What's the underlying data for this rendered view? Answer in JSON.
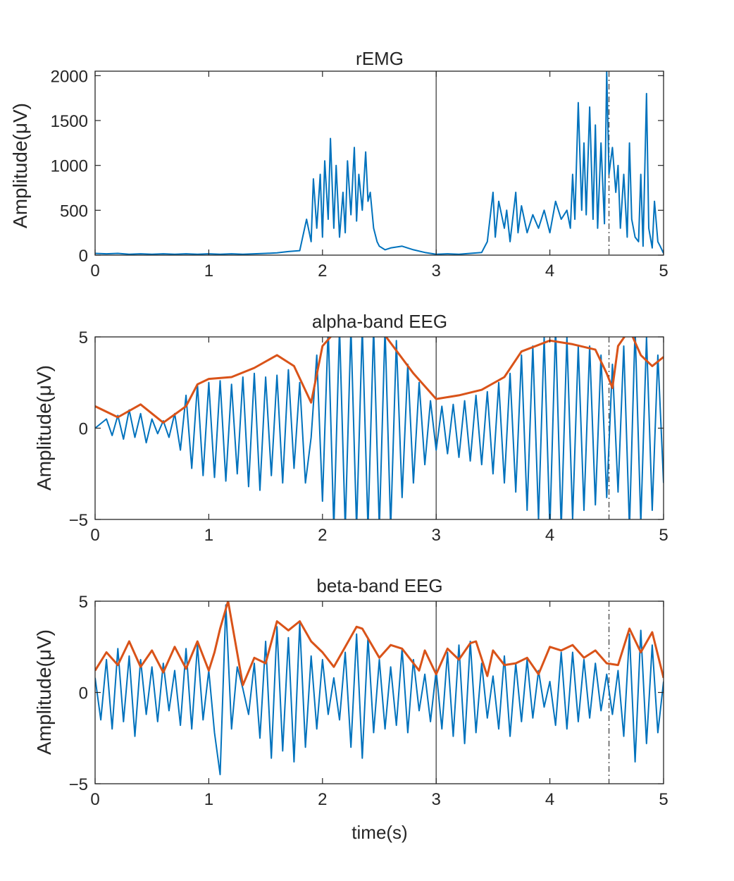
{
  "figure": {
    "xlabel": "time(s)"
  },
  "chart_data": [
    {
      "type": "line",
      "title": "rEMG",
      "ylabel": "Amplitude(μV)",
      "xlim": [
        0,
        5
      ],
      "ylim": [
        0,
        2050
      ],
      "xticks": [
        0,
        1,
        2,
        3,
        4,
        5
      ],
      "yticks": [
        0,
        500,
        1000,
        1500,
        2000
      ],
      "grid": false,
      "legend": "none",
      "colors": {
        "signal": "#0072BD",
        "marker": "#4D4D4D"
      },
      "vlines": [
        {
          "x": 3.0,
          "style": "solid"
        },
        {
          "x": 4.52,
          "style": "dashdot"
        }
      ],
      "series": [
        {
          "role": "signal",
          "x": [
            0,
            0.1,
            0.2,
            0.3,
            0.4,
            0.5,
            0.6,
            0.7,
            0.8,
            0.9,
            1.0,
            1.1,
            1.2,
            1.3,
            1.4,
            1.5,
            1.6,
            1.7,
            1.8,
            1.86,
            1.9,
            1.92,
            1.95,
            1.98,
            2.0,
            2.02,
            2.05,
            2.07,
            2.1,
            2.12,
            2.15,
            2.18,
            2.2,
            2.22,
            2.25,
            2.28,
            2.3,
            2.32,
            2.35,
            2.38,
            2.4,
            2.42,
            2.45,
            2.48,
            2.5,
            2.55,
            2.6,
            2.7,
            2.8,
            2.9,
            3.0,
            3.1,
            3.2,
            3.3,
            3.4,
            3.45,
            3.5,
            3.52,
            3.55,
            3.6,
            3.62,
            3.65,
            3.7,
            3.72,
            3.75,
            3.8,
            3.85,
            3.9,
            3.95,
            4.0,
            4.05,
            4.1,
            4.15,
            4.18,
            4.2,
            4.22,
            4.25,
            4.28,
            4.3,
            4.32,
            4.35,
            4.38,
            4.4,
            4.42,
            4.45,
            4.48,
            4.5,
            4.52,
            4.55,
            4.58,
            4.6,
            4.62,
            4.65,
            4.68,
            4.7,
            4.72,
            4.75,
            4.78,
            4.8,
            4.82,
            4.85,
            4.87,
            4.9,
            4.92,
            4.95,
            4.97,
            5.0
          ],
          "y": [
            20,
            15,
            20,
            10,
            15,
            10,
            15,
            10,
            15,
            10,
            15,
            10,
            15,
            10,
            15,
            20,
            25,
            40,
            50,
            400,
            150,
            850,
            300,
            900,
            200,
            1050,
            400,
            1300,
            300,
            1000,
            200,
            700,
            250,
            1050,
            450,
            1200,
            380,
            900,
            500,
            1150,
            600,
            700,
            300,
            150,
            100,
            60,
            80,
            100,
            60,
            30,
            10,
            15,
            10,
            20,
            30,
            150,
            700,
            200,
            600,
            300,
            500,
            150,
            700,
            250,
            550,
            250,
            450,
            300,
            500,
            250,
            600,
            400,
            500,
            300,
            900,
            400,
            1700,
            500,
            1250,
            450,
            1650,
            400,
            1450,
            300,
            1250,
            350,
            2050,
            900,
            1200,
            700,
            1000,
            300,
            900,
            200,
            1250,
            400,
            200,
            150,
            900,
            100,
            1800,
            300,
            80,
            600,
            150,
            100,
            20
          ]
        }
      ]
    },
    {
      "type": "line",
      "title": "alpha-band EEG",
      "ylabel": "Amplitude(μV)",
      "xlim": [
        0,
        5
      ],
      "ylim": [
        -5,
        5
      ],
      "xticks": [
        0,
        1,
        2,
        3,
        4,
        5
      ],
      "yticks": [
        -5,
        0,
        5
      ],
      "grid": false,
      "legend": "none",
      "colors": {
        "signal": "#0072BD",
        "envelope": "#D95319",
        "marker": "#4D4D4D"
      },
      "vlines": [
        {
          "x": 3.0,
          "style": "solid"
        },
        {
          "x": 4.52,
          "style": "dashdot"
        }
      ],
      "series": [
        {
          "role": "envelope",
          "x": [
            0,
            0.2,
            0.4,
            0.6,
            0.8,
            0.9,
            1.0,
            1.2,
            1.4,
            1.6,
            1.75,
            1.9,
            2.0,
            2.1,
            2.5,
            2.8,
            3.0,
            3.2,
            3.4,
            3.6,
            3.75,
            4.0,
            4.2,
            4.4,
            4.5,
            4.55,
            4.6,
            4.7,
            4.8,
            4.9,
            5.0
          ],
          "y": [
            1.2,
            0.6,
            1.3,
            0.3,
            1.2,
            2.4,
            2.7,
            2.8,
            3.3,
            4.0,
            3.4,
            1.4,
            4.5,
            5.2,
            5.5,
            3.0,
            1.6,
            1.8,
            2.1,
            2.8,
            4.2,
            4.8,
            4.6,
            4.3,
            3.0,
            2.2,
            4.5,
            5.4,
            4.0,
            3.4,
            3.9
          ]
        },
        {
          "role": "signal",
          "x": [
            0,
            0.1,
            0.15,
            0.2,
            0.25,
            0.3,
            0.35,
            0.4,
            0.45,
            0.5,
            0.55,
            0.6,
            0.65,
            0.7,
            0.75,
            0.8,
            0.85,
            0.9,
            0.95,
            1.0,
            1.05,
            1.1,
            1.15,
            1.2,
            1.25,
            1.3,
            1.35,
            1.4,
            1.45,
            1.5,
            1.55,
            1.6,
            1.65,
            1.7,
            1.75,
            1.8,
            1.85,
            1.9,
            1.95,
            2.0,
            2.05,
            2.1,
            2.15,
            2.2,
            2.25,
            2.3,
            2.35,
            2.4,
            2.45,
            2.5,
            2.55,
            2.6,
            2.65,
            2.7,
            2.75,
            2.8,
            2.85,
            2.9,
            2.95,
            3.0,
            3.05,
            3.1,
            3.15,
            3.2,
            3.25,
            3.3,
            3.35,
            3.4,
            3.45,
            3.5,
            3.55,
            3.6,
            3.65,
            3.7,
            3.75,
            3.8,
            3.85,
            3.9,
            3.95,
            4.0,
            4.05,
            4.1,
            4.15,
            4.2,
            4.25,
            4.3,
            4.35,
            4.4,
            4.45,
            4.5,
            4.55,
            4.6,
            4.65,
            4.7,
            4.75,
            4.8,
            4.85,
            4.9,
            4.95,
            5.0
          ],
          "y": [
            0,
            0.5,
            -0.4,
            0.7,
            -0.6,
            1.0,
            -0.5,
            0.8,
            -0.8,
            0.5,
            -0.3,
            0.4,
            -0.5,
            0.8,
            -1.2,
            1.8,
            -2.2,
            2.4,
            -2.6,
            2.5,
            -2.7,
            2.6,
            -2.9,
            2.4,
            -2.5,
            2.8,
            -3.2,
            3.0,
            -3.4,
            2.8,
            -2.6,
            2.9,
            -3.0,
            3.2,
            -2.2,
            2.5,
            -3.0,
            -0.5,
            4.0,
            -4.0,
            5.5,
            -5.5,
            5.5,
            -5.5,
            5.5,
            -5.5,
            5.5,
            -5.5,
            5.5,
            -5.5,
            5.5,
            -5.5,
            4.8,
            -3.8,
            3.5,
            -3.0,
            2.5,
            -2.0,
            1.5,
            -1.2,
            1.2,
            -1.4,
            1.3,
            -1.6,
            1.5,
            -1.8,
            1.8,
            -2.0,
            2.0,
            -2.5,
            2.5,
            -3.0,
            3.0,
            -3.5,
            4.0,
            -4.5,
            4.5,
            -5.0,
            5.0,
            -5.5,
            5.5,
            -5.5,
            5.0,
            -5.0,
            4.5,
            -4.5,
            4.5,
            -4.2,
            4.0,
            -3.8,
            3.5,
            -3.5,
            4.5,
            -5.5,
            5.5,
            -5.2,
            5.0,
            -4.5,
            4.0,
            -3.0
          ]
        }
      ]
    },
    {
      "type": "line",
      "title": "beta-band EEG",
      "ylabel": "Amplitude(μV)",
      "xlim": [
        0,
        5
      ],
      "ylim": [
        -5,
        5
      ],
      "xticks": [
        0,
        1,
        2,
        3,
        4,
        5
      ],
      "yticks": [
        -5,
        0,
        5
      ],
      "grid": false,
      "legend": "none",
      "colors": {
        "signal": "#0072BD",
        "envelope": "#D95319",
        "marker": "#4D4D4D"
      },
      "vlines": [
        {
          "x": 3.0,
          "style": "solid"
        },
        {
          "x": 4.52,
          "style": "dashdot"
        }
      ],
      "series": [
        {
          "role": "envelope",
          "x": [
            0,
            0.1,
            0.2,
            0.3,
            0.4,
            0.5,
            0.6,
            0.7,
            0.8,
            0.9,
            1.0,
            1.05,
            1.1,
            1.17,
            1.3,
            1.4,
            1.5,
            1.6,
            1.7,
            1.8,
            1.9,
            2.0,
            2.1,
            2.2,
            2.3,
            2.35,
            2.5,
            2.6,
            2.7,
            2.85,
            2.9,
            3.0,
            3.1,
            3.2,
            3.3,
            3.35,
            3.45,
            3.5,
            3.6,
            3.7,
            3.8,
            3.9,
            4.0,
            4.1,
            4.2,
            4.3,
            4.4,
            4.5,
            4.6,
            4.7,
            4.8,
            4.9,
            5.0
          ],
          "y": [
            1.2,
            2.2,
            1.5,
            2.8,
            1.4,
            2.3,
            1.1,
            2.5,
            1.3,
            2.8,
            1.2,
            2.2,
            3.5,
            5.0,
            0.4,
            1.9,
            1.6,
            3.9,
            3.4,
            3.9,
            2.8,
            2.2,
            1.4,
            2.5,
            3.6,
            3.5,
            1.9,
            2.6,
            2.4,
            1.2,
            2.3,
            1.0,
            2.4,
            1.8,
            2.7,
            2.8,
            0.9,
            2.3,
            1.5,
            1.6,
            1.9,
            1.0,
            2.5,
            2.3,
            2.6,
            1.9,
            2.3,
            1.6,
            1.5,
            3.5,
            2.2,
            3.3,
            0.8
          ]
        },
        {
          "role": "signal",
          "x": [
            0,
            0.05,
            0.1,
            0.15,
            0.2,
            0.25,
            0.3,
            0.35,
            0.4,
            0.45,
            0.5,
            0.55,
            0.6,
            0.65,
            0.7,
            0.75,
            0.8,
            0.85,
            0.9,
            0.95,
            1.0,
            1.05,
            1.1,
            1.15,
            1.2,
            1.25,
            1.3,
            1.35,
            1.4,
            1.45,
            1.5,
            1.55,
            1.6,
            1.65,
            1.7,
            1.75,
            1.8,
            1.85,
            1.9,
            1.95,
            2.0,
            2.05,
            2.1,
            2.15,
            2.2,
            2.25,
            2.3,
            2.35,
            2.4,
            2.45,
            2.5,
            2.55,
            2.6,
            2.65,
            2.7,
            2.75,
            2.8,
            2.85,
            2.9,
            2.95,
            3.0,
            3.05,
            3.1,
            3.15,
            3.2,
            3.25,
            3.3,
            3.35,
            3.4,
            3.45,
            3.5,
            3.55,
            3.6,
            3.65,
            3.7,
            3.75,
            3.8,
            3.85,
            3.9,
            3.95,
            4.0,
            4.05,
            4.1,
            4.15,
            4.2,
            4.25,
            4.3,
            4.35,
            4.4,
            4.45,
            4.5,
            4.55,
            4.6,
            4.65,
            4.7,
            4.75,
            4.8,
            4.85,
            4.9,
            4.95,
            5.0
          ],
          "y": [
            0.8,
            -1.5,
            1.8,
            -2.0,
            2.4,
            -1.6,
            2.0,
            -2.4,
            1.8,
            -1.2,
            1.4,
            -1.6,
            1.6,
            -1.0,
            1.2,
            -1.8,
            2.4,
            -2.0,
            2.6,
            -1.5,
            1.2,
            -2.2,
            -4.5,
            4.8,
            -2.0,
            1.4,
            0.2,
            -1.2,
            1.6,
            -2.5,
            2.8,
            -3.6,
            3.6,
            -3.2,
            3.0,
            -3.8,
            3.8,
            -3.0,
            2.0,
            -2.0,
            1.8,
            -1.2,
            0.8,
            -1.5,
            2.2,
            -3.0,
            3.2,
            -3.6,
            3.0,
            -2.2,
            1.8,
            -2.0,
            1.4,
            -1.8,
            2.4,
            -2.2,
            1.8,
            -1.0,
            1.0,
            -1.6,
            1.2,
            -2.0,
            2.2,
            -2.4,
            2.6,
            -2.8,
            2.8,
            -2.2,
            1.6,
            -1.4,
            0.9,
            -2.0,
            2.0,
            -2.4,
            1.6,
            -1.6,
            1.8,
            -1.4,
            1.2,
            -0.8,
            0.6,
            -1.8,
            2.2,
            -2.0,
            2.2,
            -1.6,
            1.8,
            -1.4,
            1.6,
            -1.0,
            1.0,
            -1.2,
            1.2,
            -2.4,
            3.2,
            -3.8,
            3.4,
            -2.8,
            2.6,
            -2.2,
            0.6
          ]
        }
      ]
    }
  ]
}
